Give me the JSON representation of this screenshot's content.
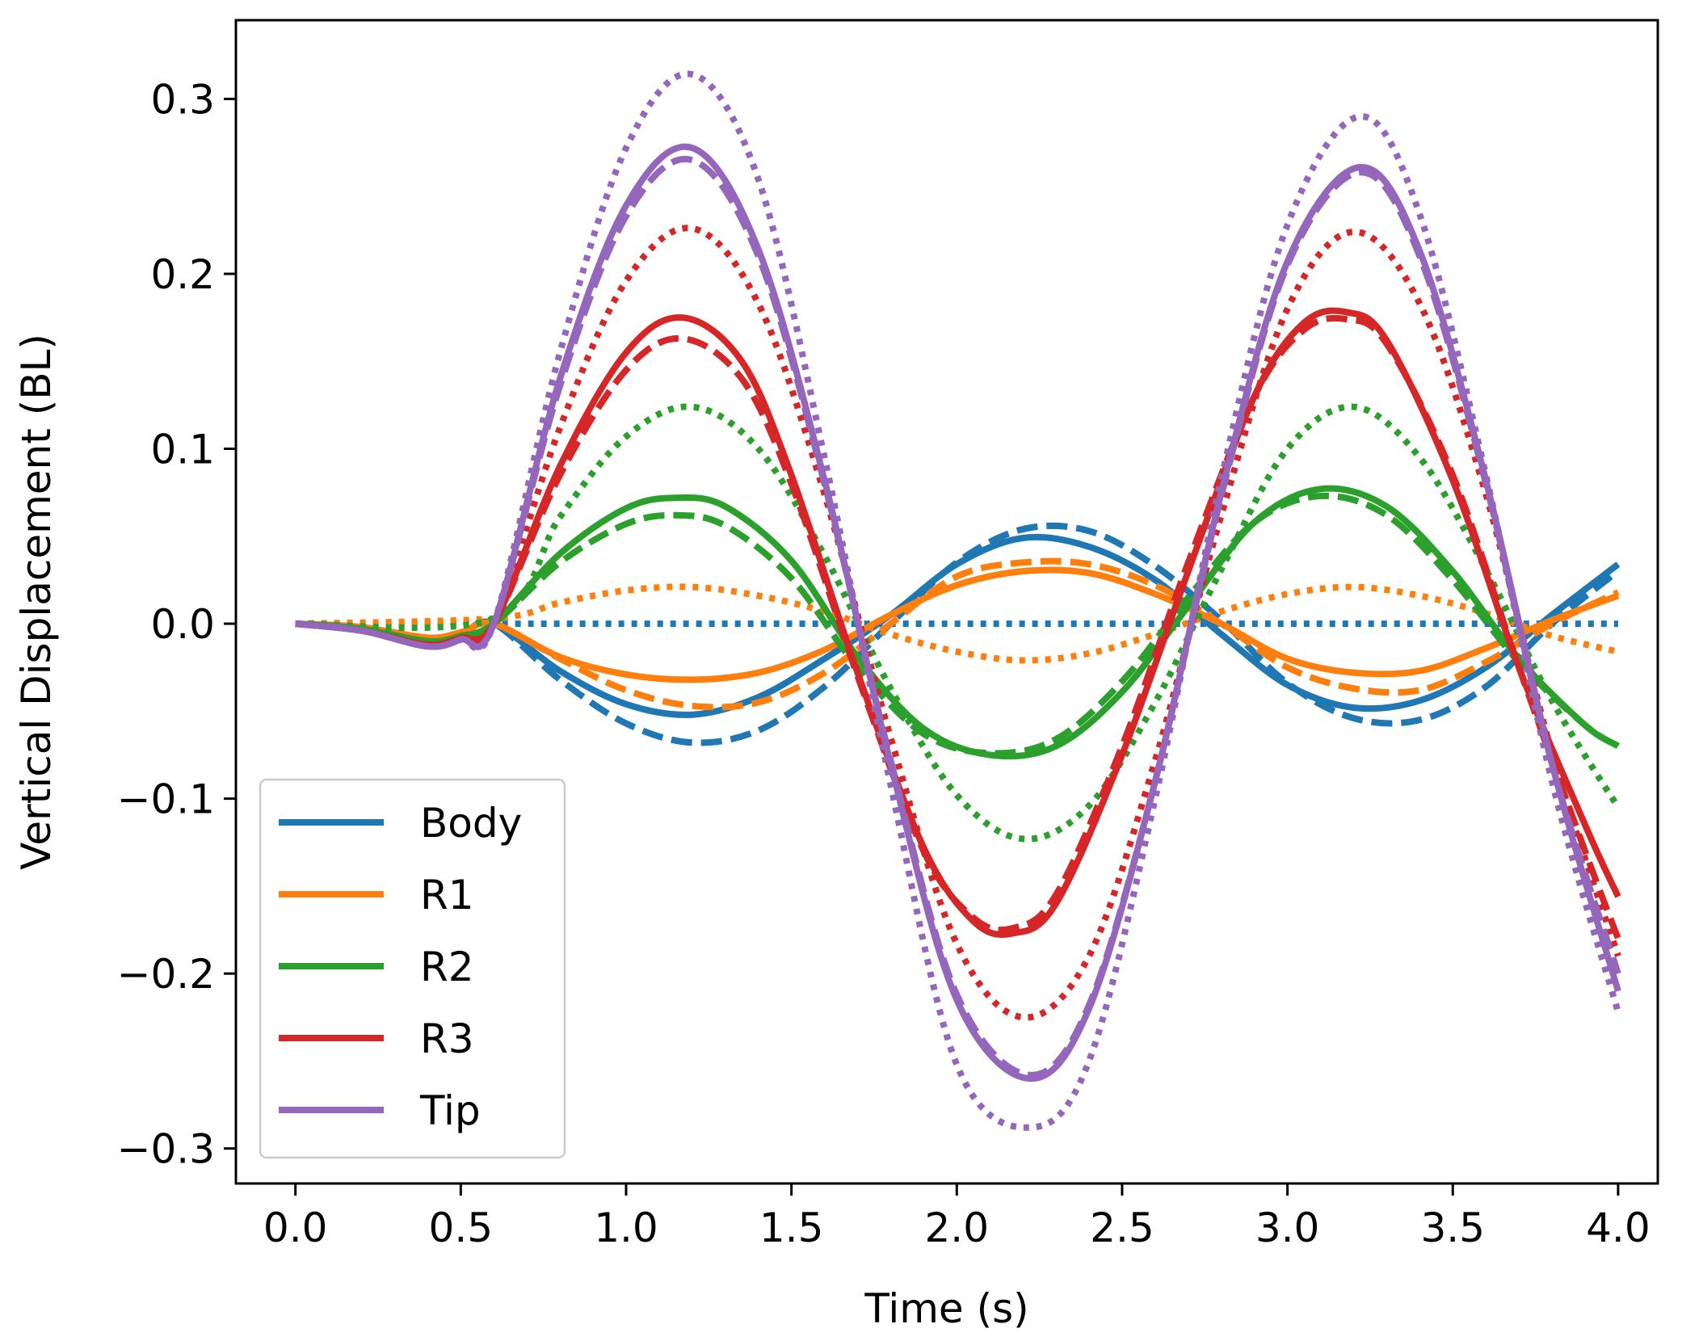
{
  "chart_data": {
    "type": "line",
    "title": "",
    "xlabel": "Time (s)",
    "ylabel": "Vertical Displacement (BL)",
    "xlim": [
      -0.18,
      4.12
    ],
    "ylim": [
      -0.32,
      0.345
    ],
    "xticks": [
      0.0,
      0.5,
      1.0,
      1.5,
      2.0,
      2.5,
      3.0,
      3.5,
      4.0
    ],
    "xtick_labels": [
      "0.0",
      "0.5",
      "1.0",
      "1.5",
      "2.0",
      "2.5",
      "3.0",
      "3.5",
      "4.0"
    ],
    "yticks": [
      -0.3,
      -0.2,
      -0.1,
      0.0,
      0.1,
      0.2,
      0.3
    ],
    "ytick_labels": [
      "−0.3",
      "−0.2",
      "−0.1",
      "0.0",
      "0.1",
      "0.2",
      "0.3"
    ],
    "grid": false,
    "legend_position": "lower-left",
    "legend": [
      "Body",
      "R1",
      "R2",
      "R3",
      "Tip"
    ],
    "series": [
      {
        "name": "Body",
        "style": "solid",
        "color": "#1f77b4",
        "x": [
          0,
          0.2,
          0.4,
          0.5,
          0.6,
          0.8,
          1.0,
          1.2,
          1.4,
          1.6,
          1.8,
          2.0,
          2.2,
          2.4,
          2.6,
          2.8,
          3.0,
          3.2,
          3.4,
          3.6,
          3.8,
          4.0
        ],
        "y": [
          0,
          -0.002,
          -0.009,
          -0.006,
          0.0,
          -0.027,
          -0.046,
          -0.052,
          -0.042,
          -0.02,
          0.005,
          0.034,
          0.049,
          0.044,
          0.025,
          -0.006,
          -0.035,
          -0.048,
          -0.044,
          -0.025,
          0.005,
          0.034
        ]
      },
      {
        "name": "Body (dashed)",
        "style": "dashed",
        "color": "#1f77b4",
        "x": [
          0,
          0.2,
          0.4,
          0.5,
          0.6,
          0.8,
          1.0,
          1.2,
          1.4,
          1.6,
          1.8,
          2.0,
          2.2,
          2.4,
          2.6,
          2.8,
          3.0,
          3.2,
          3.4,
          3.6,
          3.8,
          4.0
        ],
        "y": [
          0,
          -0.002,
          -0.009,
          -0.006,
          0.0,
          -0.032,
          -0.057,
          -0.068,
          -0.061,
          -0.036,
          0.0,
          0.035,
          0.054,
          0.053,
          0.033,
          0.002,
          -0.034,
          -0.054,
          -0.055,
          -0.036,
          0.0,
          0.03
        ]
      },
      {
        "name": "Body (dotted)",
        "style": "dotted",
        "color": "#1f77b4",
        "x": [
          0,
          0.6,
          4.0
        ],
        "y": [
          0,
          0,
          0
        ]
      },
      {
        "name": "R1",
        "style": "solid",
        "color": "#ff7f0e",
        "x": [
          0,
          0.2,
          0.4,
          0.5,
          0.6,
          0.8,
          1.0,
          1.2,
          1.4,
          1.6,
          1.8,
          2.0,
          2.2,
          2.4,
          2.6,
          2.8,
          3.0,
          3.2,
          3.4,
          3.6,
          3.8,
          4.0
        ],
        "y": [
          0,
          -0.002,
          -0.008,
          -0.005,
          0.0,
          -0.019,
          -0.029,
          -0.032,
          -0.028,
          -0.015,
          0.005,
          0.022,
          0.03,
          0.029,
          0.017,
          0.0,
          -0.02,
          -0.028,
          -0.027,
          -0.014,
          0.002,
          0.016
        ]
      },
      {
        "name": "R1 (dashed)",
        "style": "dashed",
        "color": "#ff7f0e",
        "x": [
          0,
          0.2,
          0.4,
          0.5,
          0.6,
          0.8,
          1.0,
          1.2,
          1.4,
          1.6,
          1.8,
          2.0,
          2.2,
          2.4,
          2.6,
          2.8,
          3.0,
          3.2,
          3.4,
          3.6,
          3.8,
          4.0
        ],
        "y": [
          0,
          -0.002,
          -0.008,
          -0.005,
          0.0,
          -0.02,
          -0.038,
          -0.047,
          -0.045,
          -0.028,
          0.0,
          0.027,
          0.035,
          0.034,
          0.022,
          0.0,
          -0.025,
          -0.037,
          -0.038,
          -0.022,
          0.0,
          0.018
        ]
      },
      {
        "name": "R1 (dotted)",
        "style": "dotted",
        "color": "#ff7f0e",
        "x": [
          0,
          0.6,
          0.8,
          1.0,
          1.2,
          1.4,
          1.6,
          1.8,
          2.0,
          2.2,
          2.4,
          2.6,
          2.8,
          3.0,
          3.2,
          3.4,
          3.6,
          3.8,
          4.0
        ],
        "y": [
          0,
          0.003,
          0.012,
          0.019,
          0.021,
          0.016,
          0.007,
          -0.006,
          -0.016,
          -0.021,
          -0.017,
          -0.006,
          0.007,
          0.017,
          0.021,
          0.016,
          0.006,
          -0.007,
          -0.016
        ]
      },
      {
        "name": "R2",
        "style": "solid",
        "color": "#2ca02c",
        "x": [
          0,
          0.2,
          0.4,
          0.5,
          0.6,
          0.8,
          1.0,
          1.15,
          1.3,
          1.5,
          1.7,
          1.9,
          2.1,
          2.3,
          2.5,
          2.7,
          2.9,
          3.1,
          3.3,
          3.5,
          3.7,
          3.9,
          4.0
        ],
        "y": [
          0,
          -0.003,
          -0.01,
          -0.007,
          0.0,
          0.04,
          0.066,
          0.072,
          0.067,
          0.036,
          -0.019,
          -0.06,
          -0.075,
          -0.07,
          -0.039,
          0.01,
          0.058,
          0.077,
          0.067,
          0.03,
          -0.02,
          -0.058,
          -0.07
        ]
      },
      {
        "name": "R2 (dashed)",
        "style": "dashed",
        "color": "#2ca02c",
        "x": [
          0,
          0.2,
          0.4,
          0.5,
          0.6,
          0.8,
          1.0,
          1.15,
          1.3,
          1.5,
          1.7,
          1.9,
          2.1,
          2.3,
          2.5,
          2.7,
          2.9,
          3.1,
          3.3,
          3.5,
          3.7,
          3.9,
          4.0
        ],
        "y": [
          0,
          -0.003,
          -0.01,
          -0.007,
          0.0,
          0.035,
          0.057,
          0.062,
          0.056,
          0.026,
          -0.025,
          -0.063,
          -0.074,
          -0.066,
          -0.033,
          0.015,
          0.058,
          0.073,
          0.062,
          0.025,
          -0.022,
          -0.058,
          -0.07
        ]
      },
      {
        "name": "R2 (dotted)",
        "style": "dotted",
        "color": "#2ca02c",
        "x": [
          0,
          0.6,
          0.8,
          1.0,
          1.2,
          1.4,
          1.6,
          1.8,
          2.0,
          2.2,
          2.4,
          2.6,
          2.8,
          3.0,
          3.2,
          3.4,
          3.6,
          3.8,
          4.0
        ],
        "y": [
          0,
          0.003,
          0.061,
          0.107,
          0.124,
          0.1,
          0.039,
          -0.037,
          -0.098,
          -0.123,
          -0.104,
          -0.045,
          0.031,
          0.1,
          0.124,
          0.095,
          0.031,
          -0.044,
          -0.105
        ]
      },
      {
        "name": "R3",
        "style": "solid",
        "color": "#d62728",
        "x": [
          0,
          0.2,
          0.4,
          0.5,
          0.6,
          0.8,
          1.0,
          1.17,
          1.35,
          1.5,
          1.7,
          1.9,
          2.05,
          2.17,
          2.3,
          2.5,
          2.7,
          2.9,
          3.05,
          3.18,
          3.3,
          3.5,
          3.7,
          3.9,
          4.0
        ],
        "y": [
          0,
          -0.004,
          -0.012,
          -0.008,
          0.0,
          0.09,
          0.155,
          0.175,
          0.15,
          0.085,
          -0.028,
          -0.128,
          -0.17,
          -0.177,
          -0.16,
          -0.075,
          0.03,
          0.13,
          0.172,
          0.178,
          0.162,
          0.082,
          -0.025,
          -0.115,
          -0.156
        ]
      },
      {
        "name": "R3 (dashed)",
        "style": "dashed",
        "color": "#d62728",
        "x": [
          0,
          0.2,
          0.4,
          0.5,
          0.6,
          0.8,
          1.0,
          1.17,
          1.35,
          1.5,
          1.7,
          1.9,
          2.05,
          2.17,
          2.3,
          2.5,
          2.7,
          2.9,
          3.05,
          3.18,
          3.3,
          3.5,
          3.7,
          3.9,
          4.0
        ],
        "y": [
          0,
          -0.004,
          -0.012,
          -0.008,
          0.0,
          0.085,
          0.145,
          0.163,
          0.14,
          0.08,
          -0.03,
          -0.13,
          -0.168,
          -0.174,
          -0.155,
          -0.07,
          0.035,
          0.13,
          0.168,
          0.174,
          0.16,
          0.085,
          -0.025,
          -0.13,
          -0.18
        ]
      },
      {
        "name": "R3 (dotted)",
        "style": "dotted",
        "color": "#d62728",
        "x": [
          0,
          0.2,
          0.4,
          0.5,
          0.6,
          0.8,
          1.0,
          1.2,
          1.4,
          1.6,
          1.8,
          2.0,
          2.2,
          2.4,
          2.6,
          2.8,
          3.0,
          3.2,
          3.4,
          3.6,
          3.8,
          4.0
        ],
        "y": [
          0,
          -0.004,
          -0.012,
          -0.008,
          0.0,
          0.112,
          0.196,
          0.226,
          0.183,
          0.074,
          -0.065,
          -0.183,
          -0.225,
          -0.19,
          -0.078,
          0.062,
          0.18,
          0.224,
          0.183,
          0.074,
          -0.074,
          -0.19
        ]
      },
      {
        "name": "Tip",
        "style": "solid",
        "color": "#9467bd",
        "x": [
          0,
          0.2,
          0.4,
          0.5,
          0.6,
          0.8,
          1.0,
          1.2,
          1.4,
          1.6,
          1.8,
          2.0,
          2.22,
          2.4,
          2.6,
          2.8,
          3.0,
          3.22,
          3.4,
          3.6,
          3.8,
          4.0
        ],
        "y": [
          0,
          -0.004,
          -0.013,
          -0.009,
          0.0,
          0.14,
          0.239,
          0.272,
          0.214,
          0.082,
          -0.08,
          -0.215,
          -0.26,
          -0.22,
          -0.09,
          0.075,
          0.207,
          0.261,
          0.213,
          0.082,
          -0.08,
          -0.21
        ]
      },
      {
        "name": "Tip (dashed)",
        "style": "dashed",
        "color": "#9467bd",
        "x": [
          0,
          0.2,
          0.4,
          0.5,
          0.6,
          0.8,
          1.0,
          1.2,
          1.4,
          1.6,
          1.8,
          2.0,
          2.22,
          2.4,
          2.6,
          2.8,
          3.0,
          3.22,
          3.4,
          3.6,
          3.8,
          4.0
        ],
        "y": [
          0,
          -0.004,
          -0.013,
          -0.009,
          0.0,
          0.136,
          0.233,
          0.265,
          0.21,
          0.08,
          -0.078,
          -0.212,
          -0.258,
          -0.218,
          -0.09,
          0.073,
          0.205,
          0.258,
          0.21,
          0.08,
          -0.08,
          -0.2
        ]
      },
      {
        "name": "Tip (dotted)",
        "style": "dotted",
        "color": "#9467bd",
        "x": [
          0,
          0.2,
          0.4,
          0.5,
          0.6,
          0.8,
          1.0,
          1.2,
          1.4,
          1.6,
          1.8,
          2.0,
          2.22,
          2.4,
          2.6,
          2.8,
          3.0,
          3.22,
          3.4,
          3.6,
          3.8,
          4.0
        ],
        "y": [
          0,
          -0.004,
          -0.013,
          -0.009,
          0.0,
          0.155,
          0.272,
          0.314,
          0.254,
          0.095,
          -0.092,
          -0.252,
          -0.288,
          -0.25,
          -0.1,
          0.083,
          0.228,
          0.29,
          0.234,
          0.085,
          -0.09,
          -0.222
        ]
      }
    ]
  }
}
